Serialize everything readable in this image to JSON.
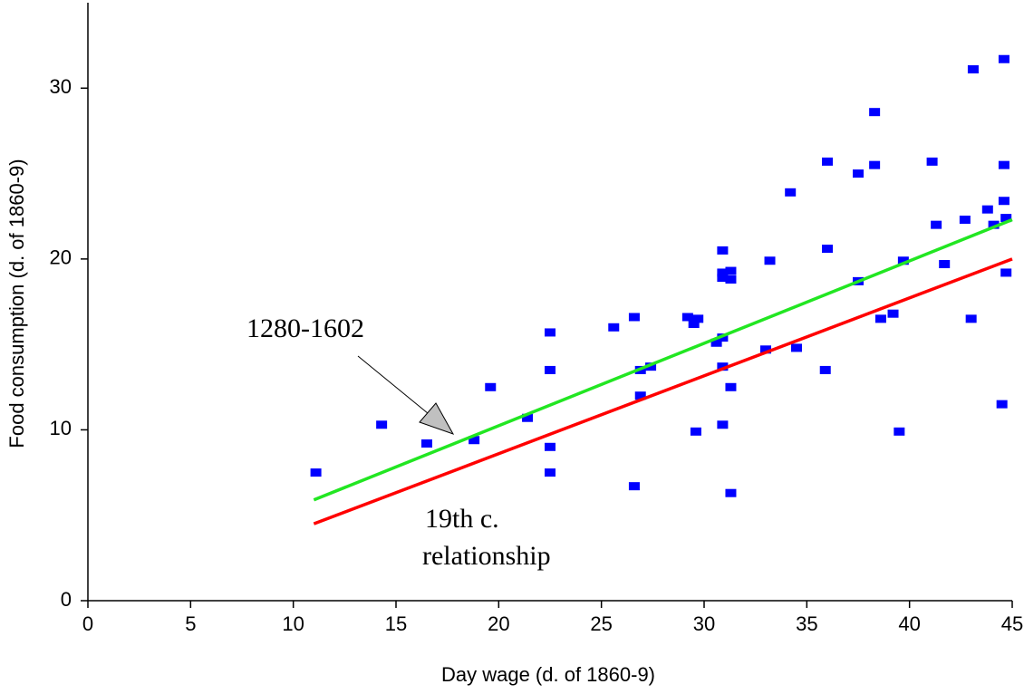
{
  "chart_data": {
    "type": "scatter",
    "x_label": "Day wage (d. of 1860-9)",
    "y_label": "Food consumption (d. of 1860-9)",
    "xlim": [
      0,
      45
    ],
    "xticks": [
      0,
      5,
      10,
      15,
      20,
      25,
      30,
      35,
      40,
      45
    ],
    "ylim": [
      0,
      35
    ],
    "yticks": [
      0,
      10,
      20,
      30
    ],
    "color": "#0000ff",
    "x": [
      11.1,
      14.3,
      16.5,
      18.8,
      19.6,
      21.4,
      22.5,
      22.5,
      22.5,
      22.5,
      25.6,
      26.6,
      26.6,
      26.9,
      26.9,
      27.4,
      29.2,
      29.5,
      29.7,
      29.6,
      30.6,
      30.9,
      30.9,
      30.9,
      30.9,
      31.3,
      31.3,
      30.9,
      30.9,
      31.3,
      31.3,
      33.2,
      33.0,
      34.2,
      34.5,
      35.9,
      36.0,
      36.0,
      37.5,
      37.5,
      38.3,
      38.3,
      38.6,
      39.2,
      39.5,
      39.7,
      41.1,
      41.3,
      41.7,
      42.7,
      43.0,
      43.1,
      43.8,
      44.1,
      44.5,
      44.6,
      44.6,
      44.6,
      44.7,
      44.7
    ],
    "y": [
      7.5,
      10.3,
      9.2,
      9.4,
      12.5,
      10.7,
      15.7,
      13.5,
      9.0,
      7.5,
      16.0,
      16.6,
      6.7,
      13.5,
      12.0,
      13.7,
      16.6,
      16.2,
      16.5,
      9.9,
      15.1,
      15.4,
      20.5,
      19.2,
      18.9,
      19.3,
      18.8,
      13.7,
      10.3,
      12.5,
      6.3,
      19.9,
      14.7,
      23.9,
      14.8,
      13.5,
      25.7,
      20.6,
      25.0,
      18.7,
      28.6,
      25.5,
      16.5,
      16.8,
      9.9,
      19.9,
      25.7,
      22.0,
      19.7,
      22.3,
      16.5,
      31.1,
      22.9,
      22.0,
      11.5,
      31.7,
      25.5,
      23.4,
      19.2,
      22.4
    ],
    "lines": [
      {
        "color": "#22e622",
        "x": [
          11,
          45
        ],
        "values": [
          5.9,
          22.3
        ]
      },
      {
        "color": "#ff0000",
        "x": [
          11,
          45
        ],
        "values": [
          4.5,
          20.0
        ]
      }
    ],
    "annotations": [
      "1280-1602",
      "19th c.",
      "relationship"
    ]
  }
}
